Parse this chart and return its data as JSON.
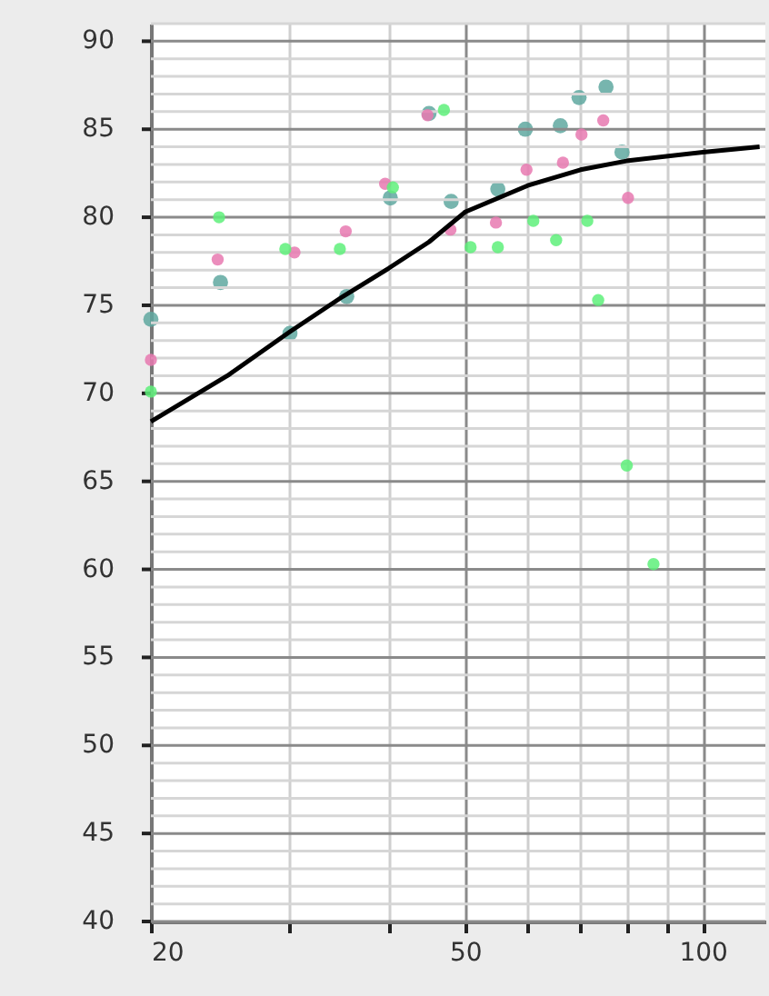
{
  "chart_data": {
    "type": "scatter",
    "marker": "circle",
    "grid": true,
    "log": "x",
    "xlim": [
      20,
      120
    ],
    "ylim": [
      40,
      91
    ],
    "xticks": [
      20,
      {
        "value": 30,
        "label": null
      },
      {
        "value": 40,
        "label": null
      },
      50,
      {
        "value": 60,
        "label": null
      },
      {
        "value": 70,
        "label": null
      },
      {
        "value": 80,
        "label": null
      },
      {
        "value": 90,
        "label": null
      },
      100
    ],
    "yticks": [
      40,
      {
        "value": 41,
        "label": null
      },
      {
        "value": 42,
        "label": null
      },
      {
        "value": 43,
        "label": null
      },
      {
        "value": 44,
        "label": null
      },
      45,
      {
        "value": 46,
        "label": null
      },
      {
        "value": 47,
        "label": null
      },
      {
        "value": 48,
        "label": null
      },
      {
        "value": 49,
        "label": null
      },
      50,
      {
        "value": 51,
        "label": null
      },
      {
        "value": 52,
        "label": null
      },
      {
        "value": 53,
        "label": null
      },
      {
        "value": 54,
        "label": null
      },
      55,
      {
        "value": 56,
        "label": null
      },
      {
        "value": 57,
        "label": null
      },
      {
        "value": 58,
        "label": null
      },
      {
        "value": 59,
        "label": null
      },
      60,
      {
        "value": 61,
        "label": null
      },
      {
        "value": 62,
        "label": null
      },
      {
        "value": 63,
        "label": null
      },
      {
        "value": 64,
        "label": null
      },
      65,
      {
        "value": 66,
        "label": null
      },
      {
        "value": 67,
        "label": null
      },
      {
        "value": 68,
        "label": null
      },
      {
        "value": 69,
        "label": null
      },
      70,
      {
        "value": 71,
        "label": null
      },
      {
        "value": 72,
        "label": null
      },
      {
        "value": 73,
        "label": null
      },
      {
        "value": 74,
        "label": null
      },
      75,
      {
        "value": 76,
        "label": null
      },
      {
        "value": 77,
        "label": null
      },
      {
        "value": 78,
        "label": null
      },
      {
        "value": 79,
        "label": null
      },
      80,
      {
        "value": 81,
        "label": null
      },
      {
        "value": 82,
        "label": null
      },
      {
        "value": 83,
        "label": null
      },
      {
        "value": 84,
        "label": null
      },
      85,
      {
        "value": 86,
        "label": null
      },
      {
        "value": 87,
        "label": null
      },
      {
        "value": 88,
        "label": null
      },
      {
        "value": 89,
        "label": null
      },
      90,
      {
        "value": 91,
        "label": null
      }
    ],
    "series": [
      {
        "color": "#5fa8a0",
        "x": [
          20,
          24.5,
          30,
          35.4,
          40.2,
          45,
          48,
          55,
          59.6,
          66,
          69.7,
          75.4,
          79
        ],
        "values": [
          74.2,
          76.3,
          73.4,
          75.5,
          81.1,
          85.9,
          80.9,
          81.6,
          85.0,
          85.2,
          86.8,
          87.4,
          83.7
        ]
      },
      {
        "color": "#e879b0",
        "x": [
          20,
          24.3,
          30.4,
          35.3,
          39.6,
          44.8,
          47.9,
          54.7,
          59.8,
          66.5,
          70.2,
          74.8,
          80.4
        ],
        "values": [
          71.9,
          77.6,
          78.0,
          79.2,
          81.9,
          85.8,
          79.3,
          79.7,
          82.7,
          83.1,
          84.7,
          85.5,
          81.1
        ]
      },
      {
        "color": "#5ef07a",
        "x": [
          20,
          24.4,
          29.6,
          34.7,
          40.5,
          47,
          50.8,
          55,
          61,
          65.2,
          71.4,
          73.7,
          80.1,
          86.6
        ],
        "values": [
          70.1,
          80.0,
          78.2,
          78.2,
          81.7,
          86.1,
          78.3,
          78.3,
          79.8,
          78.7,
          79.8,
          75.3,
          65.9,
          60.3
        ]
      },
      {
        "type": "line",
        "color": "#000000",
        "marker": "none",
        "x": [
          20,
          25,
          30,
          35,
          40,
          45,
          50,
          60,
          70,
          80,
          100,
          118
        ],
        "values": [
          68.4,
          71.0,
          73.5,
          75.5,
          77.1,
          78.6,
          80.3,
          81.8,
          82.7,
          83.2,
          83.7,
          84.0
        ]
      }
    ]
  }
}
